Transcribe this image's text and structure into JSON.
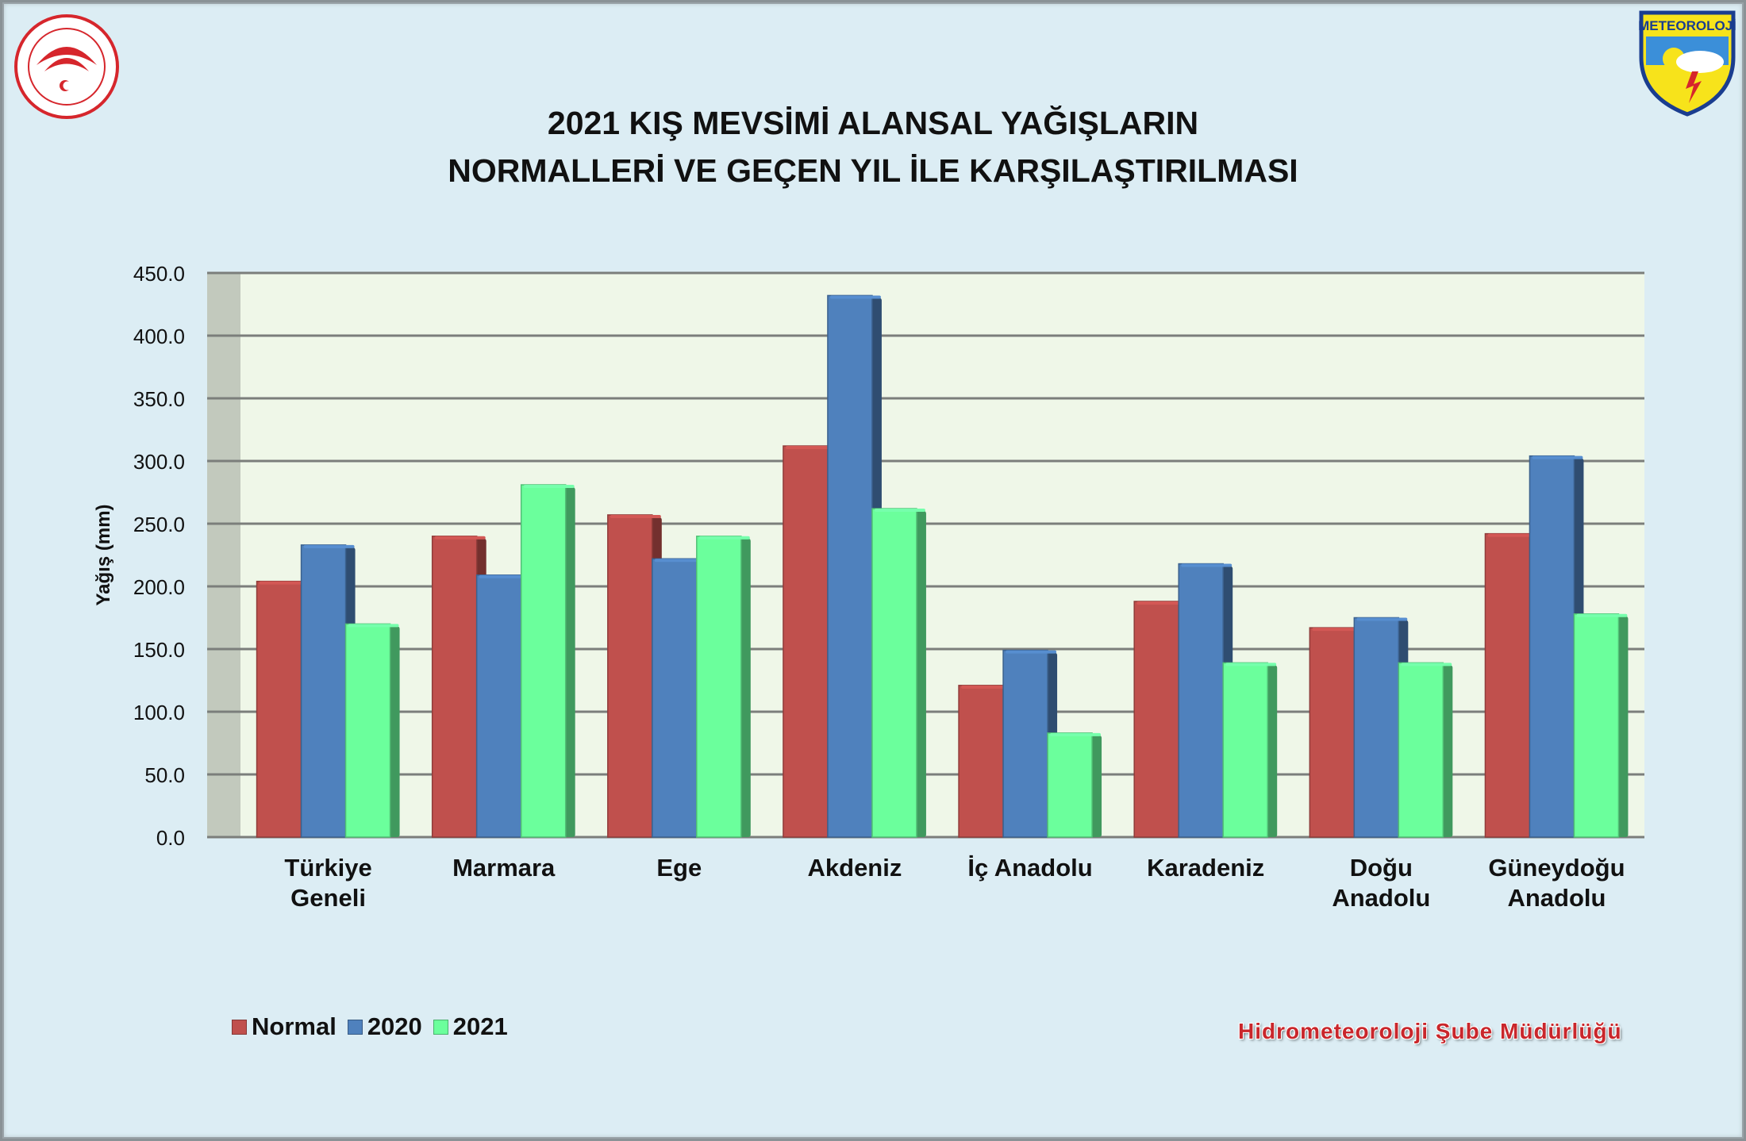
{
  "header": {
    "title_line1": "2021 KIŞ MEVSİMİ ALANSAL YAĞIŞLARIN",
    "title_line2": "NORMALLERİ VE GEÇEN YIL İLE KARŞILAŞTIRILMASI",
    "right_logo_text": "METEOROLOJİ"
  },
  "footer": {
    "text": "Hidrometeoroloji Şube Müdürlüğü"
  },
  "chart_data": {
    "type": "bar",
    "title": "2021 KIŞ MEVSİMİ ALANSAL YAĞIŞLARIN NORMALLERİ VE GEÇEN YIL İLE KARŞILAŞTIRILMASI",
    "ylabel": "Yağış (mm)",
    "xlabel": "",
    "ylim": [
      0,
      450
    ],
    "yticks": [
      "0.0",
      "50.0",
      "100.0",
      "150.0",
      "200.0",
      "250.0",
      "300.0",
      "350.0",
      "400.0",
      "450.0"
    ],
    "grid": true,
    "legend_position": "bottom-left",
    "categories": [
      [
        "Türkiye",
        "Geneli"
      ],
      [
        "Marmara"
      ],
      [
        "Ege"
      ],
      [
        "Akdeniz"
      ],
      [
        "İç Anadolu"
      ],
      [
        "Karadeniz"
      ],
      [
        "Doğu",
        "Anadolu"
      ],
      [
        "Güneydoğu",
        "Anadolu"
      ]
    ],
    "series": [
      {
        "name": "Normal",
        "color": "#c0504d",
        "values": [
          204,
          240,
          257,
          312,
          121,
          188,
          167,
          242
        ]
      },
      {
        "name": "2020",
        "color": "#4f81bd",
        "values": [
          233,
          209,
          222,
          432,
          149,
          218,
          175,
          304
        ]
      },
      {
        "name": "2021",
        "color": "#6bff9c",
        "values": [
          170,
          281,
          240,
          262,
          83,
          139,
          139,
          178
        ]
      }
    ]
  }
}
